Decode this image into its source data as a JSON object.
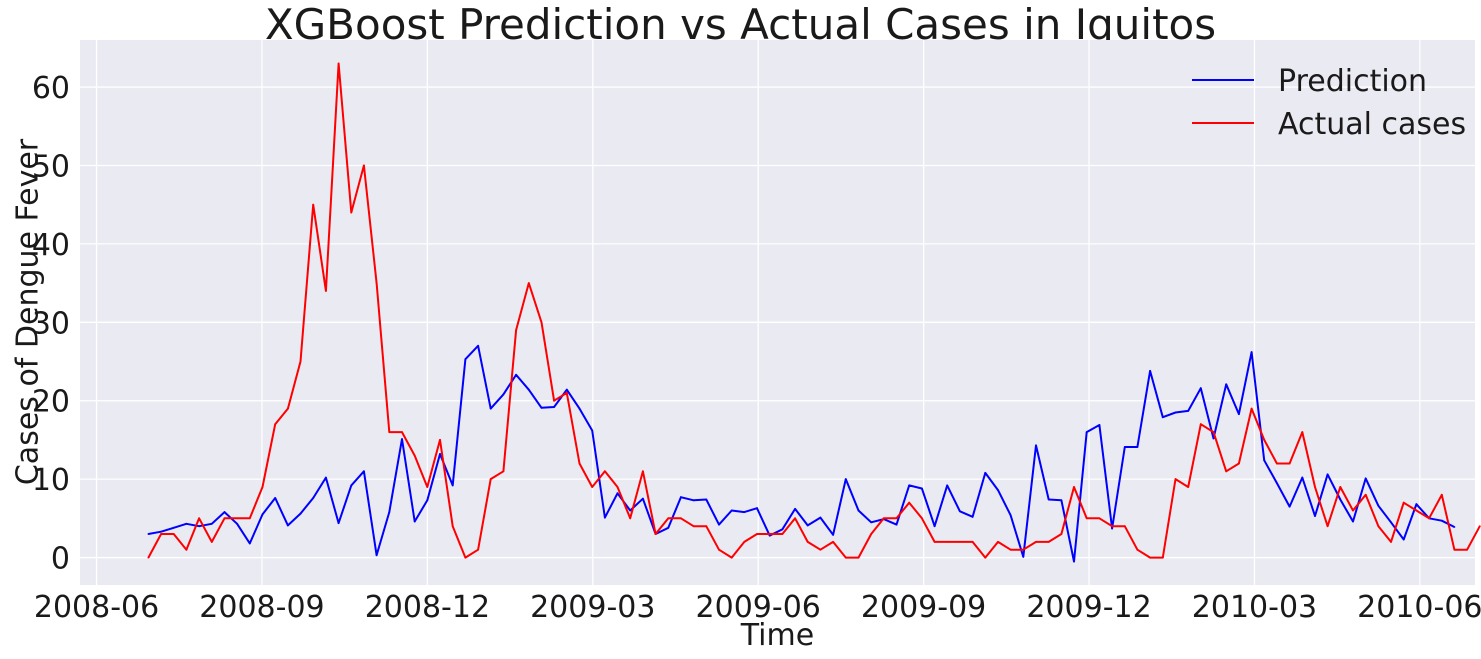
{
  "chart_data": {
    "type": "line",
    "title": "XGBoost Prediction vs Actual Cases in Iquitos",
    "xlabel": "Time",
    "ylabel": "Cases of Dengue Fever",
    "ylim": [
      -3.5,
      66
    ],
    "yticks": [
      0,
      10,
      20,
      30,
      40,
      50,
      60
    ],
    "xlim_months": [
      -0.3,
      25.0
    ],
    "xtick_labels": [
      "2008-06",
      "2008-09",
      "2008-12",
      "2009-03",
      "2009-06",
      "2009-09",
      "2009-12",
      "2010-03",
      "2010-06"
    ],
    "xtick_months": [
      0,
      3,
      6,
      9,
      12,
      15,
      18,
      21,
      24
    ],
    "x_start_month": 0.94,
    "x_step_weeks": 1,
    "grid": true,
    "legend_position": "top-right",
    "series": [
      {
        "name": "Prediction",
        "color": "#0000ff",
        "values": [
          3,
          3.3,
          3.8,
          4.3,
          4,
          4.3,
          5.8,
          4.3,
          1.8,
          5.5,
          7.6,
          4.1,
          5.6,
          7.6,
          10.2,
          4.4,
          9.2,
          11,
          0.3,
          5.8,
          15.1,
          4.6,
          7.3,
          13.2,
          9.2,
          25.3,
          27,
          19,
          20.8,
          23.3,
          21.4,
          19.1,
          19.2,
          21.4,
          19,
          16.2,
          5.1,
          8.2,
          6,
          7.5,
          3,
          3.8,
          7.7,
          7.3,
          7.4,
          4.2,
          6,
          5.8,
          6.3,
          2.8,
          3.6,
          6.2,
          4.1,
          5.1,
          2.9,
          10,
          6,
          4.5,
          4.9,
          4.2,
          9.2,
          8.8,
          4,
          9.2,
          5.9,
          5.2,
          10.8,
          8.6,
          5.4,
          0.1,
          14.3,
          7.4,
          7.3,
          -0.5,
          16,
          16.9,
          3.7,
          14.1,
          14.1,
          23.8,
          17.9,
          18.5,
          18.7,
          21.6,
          15.2,
          22.1,
          18.3,
          26.2,
          12.4,
          9.5,
          6.5,
          10.2,
          5.3,
          10.6,
          7.4,
          4.6,
          10.1,
          6.6,
          4.5,
          2.3,
          6.8,
          5,
          4.7,
          3.9
        ]
      },
      {
        "name": "Actual cases",
        "color": "#ff0000",
        "values": [
          0,
          3,
          3,
          1,
          5,
          2,
          5,
          5,
          5,
          9,
          17,
          19,
          25,
          45,
          34,
          63,
          44,
          50,
          35,
          16,
          16,
          13,
          9,
          15,
          4,
          0,
          1,
          10,
          11,
          29,
          35,
          30,
          20,
          21,
          12,
          9,
          11,
          9,
          5,
          11,
          3,
          5,
          5,
          4,
          4,
          1,
          0,
          2,
          3,
          3,
          3,
          5,
          2,
          1,
          2,
          0,
          0,
          3,
          5,
          5,
          7,
          5,
          2,
          2,
          2,
          2,
          0,
          2,
          1,
          1,
          2,
          2,
          3,
          9,
          5,
          5,
          4,
          4,
          1,
          0,
          0,
          10,
          9,
          17,
          16,
          11,
          12,
          19,
          15,
          12,
          12,
          16,
          9,
          4,
          9,
          6,
          8,
          4,
          2,
          7,
          6,
          5,
          8,
          1,
          1,
          4
        ]
      }
    ]
  }
}
